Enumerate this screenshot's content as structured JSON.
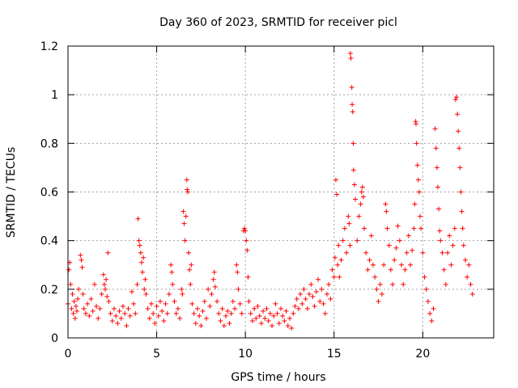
{
  "chart_data": {
    "type": "scatter",
    "title": "Day 360 of 2023, SRMTID for receiver picl",
    "xlabel": "GPS time / hours",
    "ylabel": "SRMTID / TECUs",
    "xlim": [
      0,
      24
    ],
    "ylim": [
      0,
      1.2
    ],
    "xticks": [
      0,
      5,
      10,
      15,
      20
    ],
    "yticks": [
      0,
      0.2,
      0.4,
      0.6,
      0.8,
      1,
      1.2
    ],
    "xtick_labels": [
      "0",
      "5",
      "10",
      "15",
      "20"
    ],
    "ytick_labels": [
      "0",
      "0.2",
      "0.4",
      "0.6",
      "0.8",
      "1",
      "1.2"
    ],
    "grid": true,
    "marker": "+",
    "series": [
      {
        "name": "SRMTID",
        "color": "#ff0000",
        "points": [
          [
            0.0,
            0.14
          ],
          [
            0.05,
            0.28
          ],
          [
            0.1,
            0.31
          ],
          [
            0.15,
            0.22
          ],
          [
            0.2,
            0.12
          ],
          [
            0.25,
            0.18
          ],
          [
            0.3,
            0.1
          ],
          [
            0.35,
            0.15
          ],
          [
            0.4,
            0.08
          ],
          [
            0.45,
            0.13
          ],
          [
            0.5,
            0.11
          ],
          [
            0.55,
            0.16
          ],
          [
            0.6,
            0.2
          ],
          [
            0.7,
            0.34
          ],
          [
            0.75,
            0.32
          ],
          [
            0.8,
            0.29
          ],
          [
            0.85,
            0.18
          ],
          [
            0.9,
            0.12
          ],
          [
            1.0,
            0.1
          ],
          [
            1.1,
            0.14
          ],
          [
            1.2,
            0.09
          ],
          [
            1.3,
            0.16
          ],
          [
            1.4,
            0.11
          ],
          [
            1.5,
            0.22
          ],
          [
            1.6,
            0.13
          ],
          [
            1.7,
            0.08
          ],
          [
            1.8,
            0.12
          ],
          [
            1.9,
            0.18
          ],
          [
            2.0,
            0.26
          ],
          [
            2.05,
            0.22
          ],
          [
            2.1,
            0.2
          ],
          [
            2.15,
            0.24
          ],
          [
            2.2,
            0.17
          ],
          [
            2.25,
            0.35
          ],
          [
            2.3,
            0.15
          ],
          [
            2.4,
            0.1
          ],
          [
            2.5,
            0.07
          ],
          [
            2.6,
            0.12
          ],
          [
            2.7,
            0.09
          ],
          [
            2.8,
            0.06
          ],
          [
            2.9,
            0.11
          ],
          [
            3.0,
            0.08
          ],
          [
            3.1,
            0.13
          ],
          [
            3.2,
            0.1
          ],
          [
            3.3,
            0.05
          ],
          [
            3.4,
            0.12
          ],
          [
            3.5,
            0.09
          ],
          [
            3.6,
            0.19
          ],
          [
            3.7,
            0.14
          ],
          [
            3.8,
            0.1
          ],
          [
            3.9,
            0.22
          ],
          [
            3.95,
            0.49
          ],
          [
            4.0,
            0.4
          ],
          [
            4.05,
            0.38
          ],
          [
            4.1,
            0.35
          ],
          [
            4.15,
            0.31
          ],
          [
            4.2,
            0.27
          ],
          [
            4.25,
            0.33
          ],
          [
            4.3,
            0.2
          ],
          [
            4.35,
            0.24
          ],
          [
            4.4,
            0.18
          ],
          [
            4.5,
            0.12
          ],
          [
            4.6,
            0.08
          ],
          [
            4.7,
            0.14
          ],
          [
            4.8,
            0.1
          ],
          [
            4.9,
            0.06
          ],
          [
            5.0,
            0.13
          ],
          [
            5.1,
            0.09
          ],
          [
            5.2,
            0.15
          ],
          [
            5.3,
            0.11
          ],
          [
            5.4,
            0.07
          ],
          [
            5.5,
            0.14
          ],
          [
            5.6,
            0.1
          ],
          [
            5.7,
            0.18
          ],
          [
            5.8,
            0.3
          ],
          [
            5.85,
            0.27
          ],
          [
            5.9,
            0.22
          ],
          [
            6.0,
            0.15
          ],
          [
            6.1,
            0.1
          ],
          [
            6.2,
            0.12
          ],
          [
            6.3,
            0.08
          ],
          [
            6.4,
            0.2
          ],
          [
            6.45,
            0.18
          ],
          [
            6.5,
            0.52
          ],
          [
            6.55,
            0.47
          ],
          [
            6.6,
            0.4
          ],
          [
            6.65,
            0.5
          ],
          [
            6.7,
            0.65
          ],
          [
            6.72,
            0.61
          ],
          [
            6.75,
            0.6
          ],
          [
            6.8,
            0.35
          ],
          [
            6.85,
            0.28
          ],
          [
            6.9,
            0.22
          ],
          [
            6.95,
            0.3
          ],
          [
            7.0,
            0.14
          ],
          [
            7.1,
            0.1
          ],
          [
            7.2,
            0.06
          ],
          [
            7.3,
            0.12
          ],
          [
            7.4,
            0.09
          ],
          [
            7.5,
            0.05
          ],
          [
            7.6,
            0.11
          ],
          [
            7.7,
            0.15
          ],
          [
            7.8,
            0.08
          ],
          [
            7.9,
            0.2
          ],
          [
            8.0,
            0.13
          ],
          [
            8.1,
            0.18
          ],
          [
            8.2,
            0.24
          ],
          [
            8.25,
            0.27
          ],
          [
            8.3,
            0.21
          ],
          [
            8.4,
            0.15
          ],
          [
            8.5,
            0.1
          ],
          [
            8.6,
            0.07
          ],
          [
            8.7,
            0.12
          ],
          [
            8.8,
            0.05
          ],
          [
            8.9,
            0.09
          ],
          [
            9.0,
            0.11
          ],
          [
            9.1,
            0.06
          ],
          [
            9.2,
            0.1
          ],
          [
            9.3,
            0.15
          ],
          [
            9.4,
            0.12
          ],
          [
            9.5,
            0.3
          ],
          [
            9.55,
            0.27
          ],
          [
            9.6,
            0.2
          ],
          [
            9.7,
            0.14
          ],
          [
            9.8,
            0.1
          ],
          [
            9.9,
            0.44
          ],
          [
            9.95,
            0.45
          ],
          [
            10.0,
            0.44
          ],
          [
            10.05,
            0.4
          ],
          [
            10.1,
            0.36
          ],
          [
            10.15,
            0.25
          ],
          [
            10.2,
            0.15
          ],
          [
            10.3,
            0.1
          ],
          [
            10.4,
            0.07
          ],
          [
            10.5,
            0.12
          ],
          [
            10.6,
            0.08
          ],
          [
            10.7,
            0.13
          ],
          [
            10.8,
            0.09
          ],
          [
            10.9,
            0.06
          ],
          [
            11.0,
            0.11
          ],
          [
            11.1,
            0.08
          ],
          [
            11.2,
            0.12
          ],
          [
            11.3,
            0.07
          ],
          [
            11.4,
            0.1
          ],
          [
            11.5,
            0.05
          ],
          [
            11.6,
            0.09
          ],
          [
            11.7,
            0.14
          ],
          [
            11.8,
            0.1
          ],
          [
            11.9,
            0.06
          ],
          [
            12.0,
            0.12
          ],
          [
            12.1,
            0.09
          ],
          [
            12.2,
            0.07
          ],
          [
            12.3,
            0.11
          ],
          [
            12.4,
            0.05
          ],
          [
            12.5,
            0.08
          ],
          [
            12.6,
            0.04
          ],
          [
            12.7,
            0.1
          ],
          [
            12.8,
            0.13
          ],
          [
            12.9,
            0.16
          ],
          [
            13.0,
            0.12
          ],
          [
            13.1,
            0.18
          ],
          [
            13.2,
            0.14
          ],
          [
            13.3,
            0.2
          ],
          [
            13.4,
            0.16
          ],
          [
            13.5,
            0.12
          ],
          [
            13.6,
            0.18
          ],
          [
            13.7,
            0.22
          ],
          [
            13.8,
            0.17
          ],
          [
            13.9,
            0.13
          ],
          [
            14.0,
            0.19
          ],
          [
            14.1,
            0.24
          ],
          [
            14.2,
            0.15
          ],
          [
            14.3,
            0.2
          ],
          [
            14.4,
            0.14
          ],
          [
            14.5,
            0.1
          ],
          [
            14.6,
            0.18
          ],
          [
            14.7,
            0.22
          ],
          [
            14.8,
            0.16
          ],
          [
            14.9,
            0.28
          ],
          [
            15.0,
            0.25
          ],
          [
            15.05,
            0.33
          ],
          [
            15.1,
            0.65
          ],
          [
            15.15,
            0.59
          ],
          [
            15.2,
            0.3
          ],
          [
            15.25,
            0.38
          ],
          [
            15.3,
            0.25
          ],
          [
            15.4,
            0.32
          ],
          [
            15.5,
            0.4
          ],
          [
            15.6,
            0.45
          ],
          [
            15.7,
            0.35
          ],
          [
            15.8,
            0.5
          ],
          [
            15.85,
            0.47
          ],
          [
            15.9,
            0.38
          ],
          [
            15.92,
            1.17
          ],
          [
            15.95,
            1.15
          ],
          [
            16.0,
            1.03
          ],
          [
            16.02,
            0.96
          ],
          [
            16.05,
            0.93
          ],
          [
            16.08,
            0.8
          ],
          [
            16.1,
            0.69
          ],
          [
            16.15,
            0.63
          ],
          [
            16.2,
            0.57
          ],
          [
            16.3,
            0.4
          ],
          [
            16.4,
            0.5
          ],
          [
            16.5,
            0.55
          ],
          [
            16.55,
            0.6
          ],
          [
            16.6,
            0.62
          ],
          [
            16.65,
            0.58
          ],
          [
            16.7,
            0.45
          ],
          [
            16.8,
            0.35
          ],
          [
            16.9,
            0.28
          ],
          [
            17.0,
            0.32
          ],
          [
            17.1,
            0.42
          ],
          [
            17.2,
            0.3
          ],
          [
            17.3,
            0.25
          ],
          [
            17.4,
            0.2
          ],
          [
            17.5,
            0.15
          ],
          [
            17.6,
            0.22
          ],
          [
            17.7,
            0.18
          ],
          [
            17.8,
            0.3
          ],
          [
            17.9,
            0.55
          ],
          [
            17.95,
            0.52
          ],
          [
            18.0,
            0.45
          ],
          [
            18.1,
            0.38
          ],
          [
            18.2,
            0.28
          ],
          [
            18.3,
            0.22
          ],
          [
            18.4,
            0.32
          ],
          [
            18.5,
            0.37
          ],
          [
            18.6,
            0.46
          ],
          [
            18.7,
            0.4
          ],
          [
            18.8,
            0.3
          ],
          [
            18.9,
            0.22
          ],
          [
            19.0,
            0.28
          ],
          [
            19.1,
            0.35
          ],
          [
            19.2,
            0.42
          ],
          [
            19.3,
            0.3
          ],
          [
            19.4,
            0.36
          ],
          [
            19.5,
            0.45
          ],
          [
            19.55,
            0.55
          ],
          [
            19.6,
            0.89
          ],
          [
            19.62,
            0.88
          ],
          [
            19.65,
            0.8
          ],
          [
            19.7,
            0.71
          ],
          [
            19.75,
            0.65
          ],
          [
            19.8,
            0.6
          ],
          [
            19.85,
            0.5
          ],
          [
            19.9,
            0.45
          ],
          [
            20.0,
            0.35
          ],
          [
            20.1,
            0.25
          ],
          [
            20.2,
            0.2
          ],
          [
            20.3,
            0.15
          ],
          [
            20.4,
            0.1
          ],
          [
            20.5,
            0.07
          ],
          [
            20.6,
            0.12
          ],
          [
            20.7,
            0.86
          ],
          [
            20.75,
            0.78
          ],
          [
            20.8,
            0.7
          ],
          [
            20.85,
            0.62
          ],
          [
            20.9,
            0.53
          ],
          [
            20.95,
            0.44
          ],
          [
            21.0,
            0.4
          ],
          [
            21.1,
            0.35
          ],
          [
            21.2,
            0.28
          ],
          [
            21.3,
            0.22
          ],
          [
            21.4,
            0.35
          ],
          [
            21.5,
            0.42
          ],
          [
            21.6,
            0.3
          ],
          [
            21.7,
            0.38
          ],
          [
            21.8,
            0.45
          ],
          [
            21.85,
            0.98
          ],
          [
            21.9,
            0.99
          ],
          [
            21.95,
            0.92
          ],
          [
            22.0,
            0.85
          ],
          [
            22.05,
            0.78
          ],
          [
            22.1,
            0.7
          ],
          [
            22.15,
            0.6
          ],
          [
            22.2,
            0.52
          ],
          [
            22.25,
            0.45
          ],
          [
            22.3,
            0.38
          ],
          [
            22.4,
            0.32
          ],
          [
            22.5,
            0.25
          ],
          [
            22.6,
            0.3
          ],
          [
            22.7,
            0.22
          ],
          [
            22.8,
            0.18
          ]
        ]
      }
    ]
  }
}
